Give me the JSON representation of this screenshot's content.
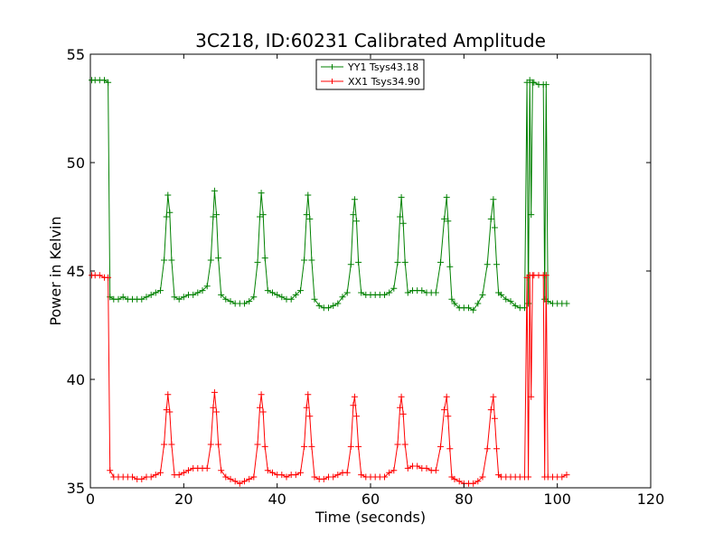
{
  "chart_data": {
    "type": "line",
    "title": "3C218, ID:60231 Calibrated Amplitude",
    "xlabel": "Time (seconds)",
    "ylabel": "Power in Kelvin",
    "xlim": [
      0,
      120
    ],
    "ylim": [
      35,
      55
    ],
    "xticks": [
      0,
      20,
      40,
      60,
      80,
      100,
      120
    ],
    "xtick_labels": [
      "0",
      "20",
      "40",
      "60",
      "80",
      "100",
      "120"
    ],
    "yticks": [
      35,
      40,
      45,
      50,
      55
    ],
    "ytick_labels": [
      "35",
      "40",
      "45",
      "50",
      "55"
    ],
    "grid": false,
    "legend_position": "top-center",
    "series": [
      {
        "name": "YY1 Tsys43.18",
        "color": "#008000",
        "marker": "+",
        "x": [
          0.3,
          1,
          2,
          3,
          3.8,
          4.2,
          5,
          6,
          7,
          8,
          9,
          10,
          11,
          12,
          13,
          14,
          15,
          15.8,
          16.3,
          16.6,
          17,
          17.4,
          18,
          19,
          20,
          21,
          22,
          23,
          24,
          25,
          25.8,
          26.3,
          26.6,
          27,
          27.4,
          28,
          29,
          30,
          31,
          32,
          33,
          34,
          35,
          35.8,
          36.3,
          36.6,
          37,
          37.4,
          38,
          39,
          40,
          41,
          42,
          43,
          44,
          45,
          45.8,
          46.3,
          46.6,
          47,
          47.4,
          48,
          49,
          50,
          51,
          52,
          53,
          54,
          55,
          55.8,
          56.3,
          56.6,
          57,
          57.4,
          58,
          59,
          60,
          61,
          62,
          63,
          64,
          65,
          65.8,
          66.3,
          66.6,
          67,
          67.4,
          68,
          69,
          70,
          71,
          72,
          73,
          74,
          75,
          75.8,
          76.3,
          76.6,
          77,
          77.4,
          78,
          79,
          80,
          81,
          82,
          83,
          84,
          85,
          85.8,
          86.3,
          86.6,
          87,
          87.4,
          88,
          89,
          90,
          91,
          92,
          93,
          93.5,
          93.8,
          94.1,
          94.4,
          94.7,
          95,
          96,
          97,
          97.3,
          97.6,
          98,
          99,
          100,
          101,
          102
        ],
        "y": [
          53.8,
          53.8,
          53.8,
          53.8,
          53.7,
          43.8,
          43.7,
          43.7,
          43.8,
          43.7,
          43.7,
          43.7,
          43.7,
          43.8,
          43.9,
          44,
          44.1,
          45.5,
          47.5,
          48.5,
          47.7,
          45.5,
          43.8,
          43.7,
          43.8,
          43.9,
          43.9,
          44,
          44.1,
          44.3,
          45.5,
          47.5,
          48.7,
          47.6,
          45.6,
          43.9,
          43.7,
          43.6,
          43.5,
          43.5,
          43.5,
          43.6,
          43.8,
          45.4,
          47.5,
          48.6,
          47.6,
          45.6,
          44.1,
          44,
          43.9,
          43.8,
          43.7,
          43.7,
          43.9,
          44.1,
          45.5,
          47.6,
          48.5,
          47.4,
          45.5,
          43.7,
          43.4,
          43.3,
          43.3,
          43.4,
          43.5,
          43.8,
          44,
          45.3,
          47.6,
          48.3,
          47.3,
          45.4,
          44,
          43.9,
          43.9,
          43.9,
          43.9,
          43.9,
          44,
          44.2,
          45.4,
          47.5,
          48.4,
          47.2,
          45.4,
          44,
          44.1,
          44.1,
          44.1,
          44,
          44,
          44,
          45.4,
          47.4,
          48.4,
          47.3,
          45.2,
          43.7,
          43.5,
          43.3,
          43.3,
          43.3,
          43.2,
          43.5,
          43.9,
          45.3,
          47.4,
          48.3,
          47,
          45.3,
          44,
          43.9,
          43.7,
          43.6,
          43.4,
          43.3,
          43.3,
          53.7,
          43.5,
          53.8,
          47.6,
          53.7,
          53.7,
          53.6,
          53.6,
          43.7,
          53.6,
          43.6,
          43.5,
          43.5,
          43.5,
          43.5
        ]
      },
      {
        "name": "XX1 Tsys34.90",
        "color": "#ff0000",
        "marker": "+",
        "x": [
          0.3,
          1,
          2,
          3,
          3.8,
          4.2,
          5,
          6,
          7,
          8,
          9,
          10,
          11,
          12,
          13,
          14,
          15,
          15.8,
          16.3,
          16.6,
          17,
          17.4,
          18,
          19,
          20,
          21,
          22,
          23,
          24,
          25,
          25.8,
          26.3,
          26.6,
          27,
          27.4,
          28,
          29,
          30,
          31,
          32,
          33,
          34,
          35,
          35.8,
          36.3,
          36.6,
          37,
          37.4,
          38,
          39,
          40,
          41,
          42,
          43,
          44,
          45,
          45.8,
          46.3,
          46.6,
          47,
          47.4,
          48,
          49,
          50,
          51,
          52,
          53,
          54,
          55,
          55.8,
          56.3,
          56.6,
          57,
          57.4,
          58,
          59,
          60,
          61,
          62,
          63,
          64,
          65,
          65.8,
          66.3,
          66.6,
          67,
          67.4,
          68,
          69,
          70,
          71,
          72,
          73,
          74,
          75,
          75.8,
          76.3,
          76.6,
          77,
          77.4,
          78,
          79,
          80,
          81,
          82,
          83,
          84,
          85,
          85.8,
          86.3,
          86.6,
          87,
          87.4,
          88,
          89,
          90,
          91,
          92,
          93,
          93.5,
          93.8,
          94.1,
          94.4,
          94.7,
          95,
          96,
          97,
          97.3,
          97.6,
          98,
          99,
          100,
          101,
          102
        ],
        "y": [
          44.8,
          44.8,
          44.8,
          44.7,
          44.7,
          35.8,
          35.5,
          35.5,
          35.5,
          35.5,
          35.5,
          35.4,
          35.4,
          35.5,
          35.5,
          35.6,
          35.7,
          37,
          38.6,
          39.3,
          38.5,
          37,
          35.6,
          35.6,
          35.7,
          35.8,
          35.9,
          35.9,
          35.9,
          35.9,
          37,
          38.7,
          39.4,
          38.5,
          37,
          35.8,
          35.5,
          35.4,
          35.3,
          35.2,
          35.3,
          35.4,
          35.5,
          37,
          38.7,
          39.3,
          38.5,
          36.9,
          35.8,
          35.7,
          35.6,
          35.6,
          35.5,
          35.6,
          35.6,
          35.7,
          36.9,
          38.7,
          39.3,
          38.3,
          36.9,
          35.5,
          35.4,
          35.4,
          35.5,
          35.5,
          35.6,
          35.7,
          35.7,
          36.9,
          38.8,
          39.2,
          38.3,
          36.9,
          35.6,
          35.5,
          35.5,
          35.5,
          35.5,
          35.5,
          35.7,
          35.8,
          37,
          38.7,
          39.2,
          38.4,
          37,
          35.9,
          36,
          36,
          35.9,
          35.9,
          35.8,
          35.8,
          36.9,
          38.6,
          39.2,
          38.3,
          36.8,
          35.5,
          35.4,
          35.3,
          35.2,
          35.2,
          35.2,
          35.3,
          35.5,
          36.8,
          38.6,
          39.2,
          38.2,
          36.8,
          35.6,
          35.5,
          35.5,
          35.5,
          35.5,
          35.5,
          35.5,
          44.7,
          35.5,
          44.8,
          39.2,
          44.8,
          44.8,
          44.8,
          44.8,
          35.5,
          44.8,
          35.5,
          35.5,
          35.5,
          35.5,
          35.6
        ]
      }
    ]
  }
}
